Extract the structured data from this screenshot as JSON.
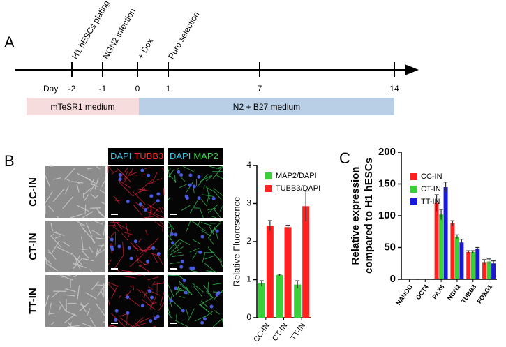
{
  "timeline": {
    "label": "A",
    "day_label": "Day",
    "events": [
      {
        "day": -2,
        "label": "H1 hESCs plating"
      },
      {
        "day": -1,
        "label": "NGN2 infection"
      },
      {
        "day": 0,
        "label": "+ Dox"
      },
      {
        "day": 1,
        "label": "Puro selection"
      },
      {
        "day": 7
      },
      {
        "day": 14
      }
    ],
    "media": [
      {
        "label": "mTeSR1 medium",
        "color": "#f6dcdc"
      },
      {
        "label": "N2 + B27 medium",
        "color": "#b9cfe6"
      }
    ]
  },
  "panel_b": {
    "label": "B",
    "row_labels": [
      "CC-IN",
      "CT-IN",
      "TT-IN"
    ],
    "stain_headers": [
      [
        {
          "text": "DAPI",
          "color": "#3cc8ec"
        },
        {
          "text": "TUBB3",
          "color": "#ff2a2a"
        }
      ],
      [
        {
          "text": "DAPI",
          "color": "#3cc8ec"
        },
        {
          "text": "MAP2",
          "color": "#3fd14a"
        }
      ]
    ]
  },
  "chart_data": [
    {
      "type": "bar",
      "ylabel": "Relative Fluorescence",
      "categories": [
        "CC-IN",
        "CT-IN",
        "TT-IN"
      ],
      "ylim": [
        0,
        4
      ],
      "yticks": [
        0,
        1,
        2,
        3,
        4
      ],
      "legend": "upper left",
      "series": [
        {
          "name": "MAP2/DAPI",
          "color": "#3ccf3c",
          "values": [
            0.9,
            1.12,
            0.87
          ],
          "errors": [
            0.07,
            0.02,
            0.1
          ]
        },
        {
          "name": "TUBB3/DAPI",
          "color": "#ff2020",
          "values": [
            2.42,
            2.38,
            2.93
          ],
          "errors": [
            0.13,
            0.05,
            0.4
          ]
        }
      ]
    },
    {
      "type": "bar",
      "panel": "C",
      "ylabel": [
        "Relative expression",
        "compared to H1 hESCs"
      ],
      "categories": [
        "NANOG",
        "OCT4",
        "PAX6",
        "NGN2",
        "TUBB3",
        "FOXG1"
      ],
      "ylim": [
        0,
        200
      ],
      "yticks": [
        0,
        50,
        100,
        150,
        200
      ],
      "legend": "upper left",
      "series": [
        {
          "name": "CC-IN",
          "color": "#ff2020",
          "values": [
            0,
            0,
            120,
            88,
            43,
            27
          ],
          "errors": [
            0,
            0,
            13,
            4,
            2,
            4
          ]
        },
        {
          "name": "CT-IN",
          "color": "#3ccf3c",
          "values": [
            0,
            0,
            102,
            67,
            43,
            28
          ],
          "errors": [
            0,
            0,
            8,
            3,
            2,
            4
          ]
        },
        {
          "name": "TT-IN",
          "color": "#1a1ad6",
          "values": [
            0,
            0,
            145,
            58,
            48,
            25
          ],
          "errors": [
            0,
            0,
            8,
            5,
            2,
            4
          ]
        }
      ]
    }
  ]
}
